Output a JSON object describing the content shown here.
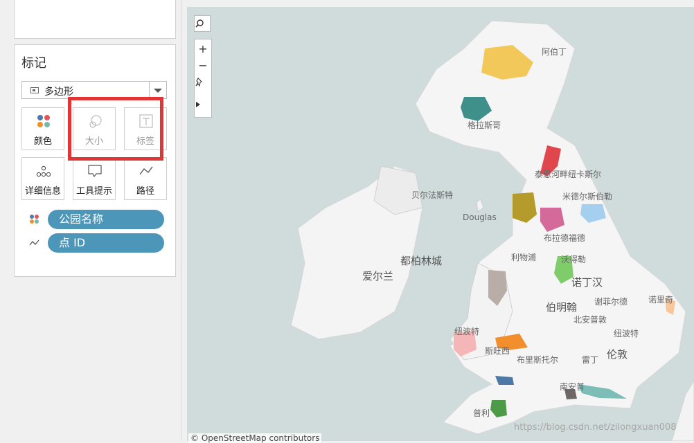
{
  "marks": {
    "title": "标记",
    "mark_type": "多边形",
    "tiles": {
      "color": "颜色",
      "size": "大小",
      "label": "标签",
      "detail": "详细信息",
      "tooltip": "工具提示",
      "path": "路径"
    },
    "pills": [
      {
        "label": "公园名称",
        "icon": "color-dots-icon"
      },
      {
        "label": "点 ID",
        "icon": "path-line-icon"
      }
    ]
  },
  "map": {
    "places": {
      "aberdeen": "阿伯丁",
      "glasgow": "格拉斯哥",
      "belfast": "贝尔法斯特",
      "douglas": "Douglas",
      "newcastle": "泰恩河畔纽卡斯尔",
      "middlesbrough": "米德尔斯伯勒",
      "bradford": "布拉德福德",
      "liverpool": "利物浦",
      "sheffield": "谢菲尔德",
      "nottingham": "诺丁汉",
      "birmingham": "伯明翰",
      "northampton": "北安普敦",
      "norwich": "诺里奇",
      "colchester": "纽波特",
      "cardiff": "斯旺西",
      "bristol": "布里斯托尔",
      "reading": "雷丁",
      "london": "伦敦",
      "southampton": "南安普",
      "plymouth": "普利",
      "dublin": "都柏林城",
      "ireland": "爱尔兰",
      "leicester": "沃得勒",
      "newport_wales": "纽波特"
    },
    "attribution": "© OpenStreetMap contributors"
  },
  "watermark": "https://blog.csdn.net/zilongxuan008",
  "colors": {
    "accent": "#4b96b9",
    "highlight": "#e23636",
    "sea": "#cfdcdb",
    "land": "#f7f7f7"
  }
}
